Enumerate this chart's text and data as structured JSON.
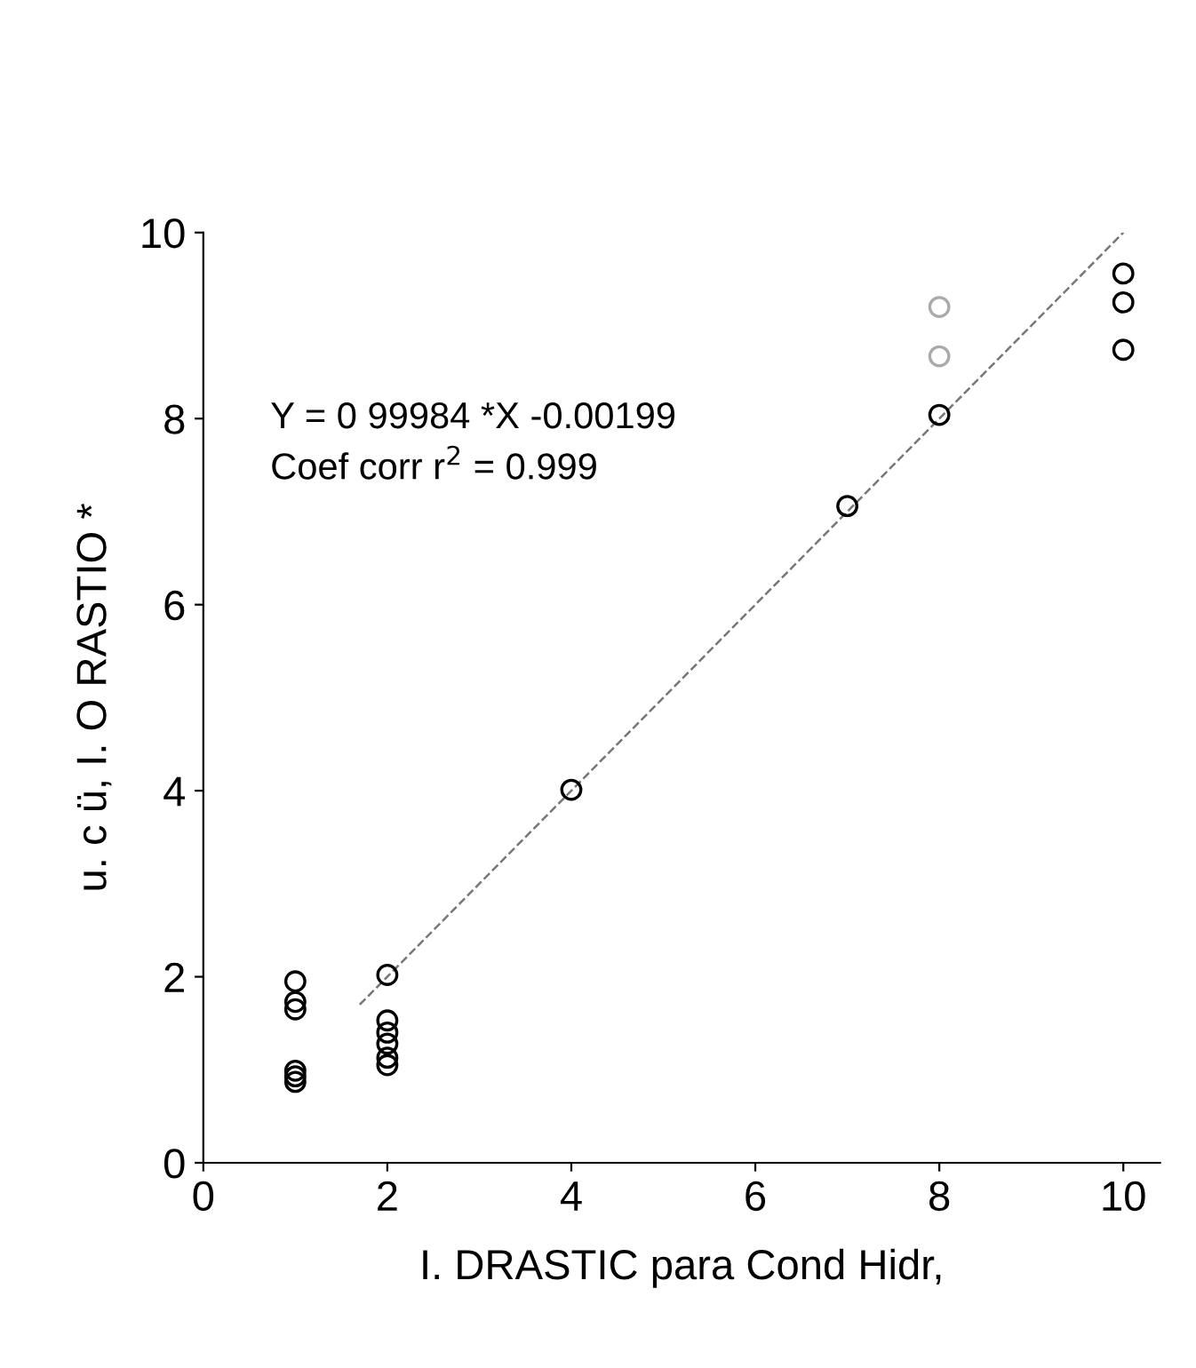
{
  "chart_data": {
    "type": "scatter",
    "xlabel": "I. DRASTIC para Cond Hidr,",
    "ylabel": "u. c ü, I. O RASTIO *",
    "xlim": [
      0,
      10.4
    ],
    "ylim": [
      0,
      10
    ],
    "xticks": [
      0,
      2,
      4,
      6,
      8,
      10
    ],
    "yticks": [
      0,
      2,
      4,
      6,
      8,
      10
    ],
    "grid": false,
    "marker": "circle",
    "annotations": [
      "Y = 0 99984 *X -0.00199",
      "Coef corr r$^{2}$ = 0.999"
    ],
    "series": [
      {
        "color": "#000000",
        "x": [
          1,
          1,
          1,
          1,
          1,
          1,
          2,
          2,
          2,
          2,
          2,
          2,
          4,
          7,
          8,
          10,
          10,
          10
        ],
        "values": [
          1.95,
          1.73,
          1.65,
          0.99,
          0.93,
          0.87,
          2.02,
          1.53,
          1.4,
          1.28,
          1.13,
          1.05,
          4.01,
          7.06,
          8.04,
          9.56,
          9.25,
          8.74
        ]
      },
      {
        "color": "#aaaaaa",
        "x": [
          8,
          8
        ],
        "values": [
          9.2,
          8.67
        ]
      },
      {
        "type": "line",
        "marker": "none",
        "color": "#777777",
        "line_style": "dashed",
        "x": [
          1.7,
          10.0
        ],
        "values": [
          1.7,
          10.0
        ]
      }
    ]
  }
}
